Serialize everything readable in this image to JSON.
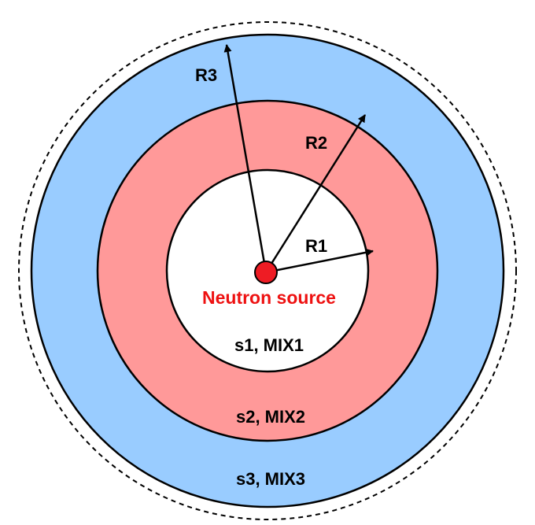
{
  "colors": {
    "outer_ring": "#99ccff",
    "middle_ring": "#ff9999",
    "inner_region": "#ffffff",
    "source": "#ee1c24",
    "source_label": "#ee1111",
    "stroke": "#000000"
  },
  "labels": {
    "r1": "R1",
    "r2": "R2",
    "r3": "R3",
    "source": "Neutron source",
    "region1": "s1, MIX1",
    "region2": "s2, MIX2",
    "region3": "s3, MIX3"
  }
}
